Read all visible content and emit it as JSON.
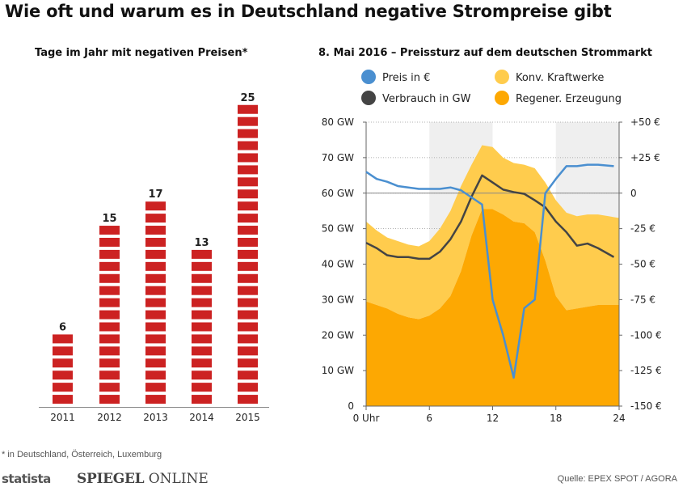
{
  "title": "Wie oft und warum es in Deutschland negative Strompreise gibt",
  "footnote": "* in Deutschland, Österreich, Luxemburg",
  "source": "Quelle: EPEX SPOT / AGORA",
  "logos": {
    "statista": "statista",
    "spiegel_bold": "SPIEGEL",
    "spiegel_light": " ONLINE"
  },
  "colors": {
    "bar": "#cc2222",
    "price_line": "#4a8fd0",
    "consumption_line": "#444444",
    "conventional_area": "#ffcc4d",
    "renewable_area": "#fda802",
    "shaded_band": "#efefef"
  },
  "chart_data": [
    {
      "type": "bar",
      "title": "Tage im Jahr mit negativen Preisen*",
      "categories": [
        "2011",
        "2012",
        "2013",
        "2014",
        "2015"
      ],
      "values": [
        6,
        15,
        17,
        13,
        25
      ],
      "value_labels": [
        "6",
        "15",
        "17",
        "13",
        "25"
      ],
      "ylim": [
        0,
        25
      ],
      "style": "brick stacks, one brick per day"
    },
    {
      "type": "area",
      "title": "8. Mai 2016 – Preissturz auf dem deutschen Strommarkt",
      "legend": [
        {
          "key": "price",
          "label": "Preis in €"
        },
        {
          "key": "conventional",
          "label": "Konv. Kraftwerke"
        },
        {
          "key": "consumption",
          "label": "Verbrauch in GW"
        },
        {
          "key": "renewable",
          "label": "Regener. Erzeugung"
        }
      ],
      "x_ticks": [
        0,
        6,
        12,
        18,
        24
      ],
      "x_tick_labels": [
        "0 Uhr",
        "6",
        "12",
        "18",
        "24"
      ],
      "xlim": [
        0,
        24
      ],
      "left_axis": {
        "ylim": [
          0,
          80
        ],
        "ticks": [
          0,
          10,
          20,
          30,
          40,
          50,
          60,
          70,
          80
        ],
        "labels": [
          "0",
          "10 GW",
          "20 GW",
          "30 GW",
          "40 GW",
          "50 GW",
          "60 GW",
          "70 GW",
          "80 GW"
        ]
      },
      "right_axis": {
        "ylim": [
          -150,
          50
        ],
        "ticks": [
          50,
          25,
          0,
          -25,
          -50,
          -75,
          -100,
          -125,
          -150
        ],
        "labels": [
          "+50 €",
          "+25 €",
          "0",
          "-25 €",
          "-50 €",
          "-75 €",
          "-100 €",
          "-125 €",
          "-150 €"
        ]
      },
      "shaded_hours": [
        [
          6,
          12
        ],
        [
          18,
          24
        ]
      ],
      "hours": [
        0,
        1,
        2,
        3,
        4,
        5,
        6,
        7,
        8,
        9,
        10,
        11,
        12,
        13,
        14,
        15,
        16,
        17,
        18,
        19,
        20,
        21,
        22,
        23,
        24
      ],
      "renewable_gw": [
        29.5,
        28.5,
        27.5,
        26,
        25,
        24.5,
        25.5,
        27.5,
        31,
        38,
        48,
        55.5,
        55.5,
        54,
        52,
        51.5,
        49,
        41,
        31,
        27,
        27.5,
        28,
        28.5,
        28.5,
        28.5
      ],
      "total_generation_gw": [
        52,
        49.5,
        47.5,
        46.5,
        45.5,
        45,
        46.5,
        50,
        55,
        62,
        68,
        73.5,
        73,
        70,
        68.5,
        68,
        67,
        63,
        58,
        54.5,
        53.5,
        54,
        54,
        53.5,
        53
      ],
      "consumption_gw": [
        46,
        44.5,
        42.5,
        42,
        42,
        41.5,
        41.5,
        43.5,
        47,
        52,
        59,
        65,
        63,
        61,
        60.3,
        59.8,
        58,
        56,
        52,
        49,
        45.2,
        45.8,
        44.5,
        42
      ],
      "consumption_hours": [
        0,
        1,
        2,
        3,
        4,
        5,
        6,
        7,
        8,
        9,
        10,
        11,
        12,
        13,
        14,
        15,
        16,
        17,
        18,
        19,
        20,
        21,
        22,
        23.5
      ],
      "price_eur": [
        15,
        10,
        8,
        5,
        4,
        3,
        3,
        3,
        4,
        2,
        -3,
        -8,
        -75,
        -100,
        -130,
        -81,
        -75,
        0,
        10,
        19,
        19,
        20,
        20,
        19
      ],
      "price_hours": [
        0,
        1,
        2,
        3,
        4,
        5,
        6,
        7,
        8,
        9,
        10,
        11,
        12,
        13,
        14,
        15,
        16,
        17,
        18,
        19,
        20,
        21,
        22,
        23.5
      ]
    }
  ]
}
